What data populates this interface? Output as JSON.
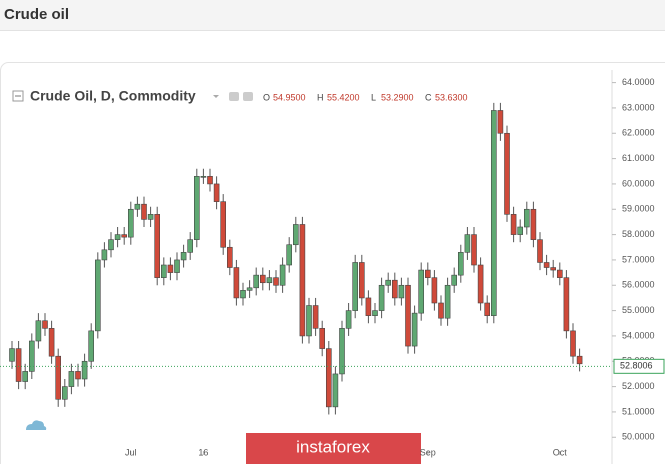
{
  "header": {
    "title": "Crude oil"
  },
  "chart_data": {
    "type": "candlestick",
    "title": "Crude Oil, D, Commodity",
    "legend_ohlc": [
      {
        "label": "O",
        "value": "54.9500"
      },
      {
        "label": "H",
        "value": "55.4200"
      },
      {
        "label": "L",
        "value": "53.2900"
      },
      {
        "label": "C",
        "value": "53.6300"
      }
    ],
    "watermark": "instaforex",
    "categories": [
      null,
      null,
      null,
      null,
      null,
      null,
      null,
      null,
      null,
      null,
      null,
      null,
      null,
      null,
      null,
      null,
      null,
      null,
      "Jul",
      null,
      null,
      null,
      null,
      null,
      null,
      null,
      null,
      null,
      null,
      "16",
      null,
      null,
      null,
      null,
      null,
      null,
      null,
      null,
      null,
      null,
      null,
      null,
      null,
      null,
      null,
      null,
      null,
      null,
      null,
      null,
      null,
      null,
      null,
      null,
      null,
      null,
      null,
      null,
      null,
      null,
      null,
      null,
      null,
      "Sep",
      null,
      null,
      null,
      null,
      null,
      null,
      null,
      null,
      null,
      null,
      null,
      null,
      null,
      null,
      null,
      null,
      null,
      null,
      null,
      "Oct",
      null,
      null,
      null
    ],
    "series": [
      {
        "up_color": "#5fa872",
        "down_color": "#cf4a3a",
        "open": [
          53.0,
          53.5,
          52.2,
          52.6,
          53.8,
          54.6,
          54.3,
          53.2,
          51.5,
          52.0,
          52.6,
          52.3,
          53.0,
          54.2,
          57.0,
          57.4,
          57.8,
          58.0,
          57.9,
          59.0,
          59.2,
          58.6,
          58.8,
          56.3,
          56.8,
          56.5,
          57.0,
          57.3,
          57.8,
          60.3,
          60.3,
          60.0,
          59.3,
          57.5,
          56.7,
          55.5,
          55.8,
          55.9,
          56.4,
          56.1,
          56.3,
          56.0,
          56.8,
          57.6,
          58.4,
          54.0,
          55.2,
          54.3,
          53.5,
          51.2,
          52.5,
          54.3,
          55.0,
          56.9,
          55.5,
          54.8,
          55.0,
          56.0,
          56.2,
          55.5,
          56.0,
          53.6,
          54.9,
          56.6,
          56.3,
          55.3,
          54.7,
          56.0,
          56.4,
          57.3,
          58.0,
          56.8,
          55.3,
          54.8,
          62.9,
          62.0,
          58.8,
          58.0,
          58.3,
          59.0,
          57.8,
          56.9,
          56.7,
          56.6,
          56.3,
          54.2,
          53.2
        ],
        "high": [
          53.8,
          53.8,
          52.9,
          54.1,
          54.9,
          54.9,
          54.6,
          53.5,
          52.3,
          52.9,
          52.9,
          53.3,
          54.5,
          57.3,
          57.7,
          58.1,
          58.3,
          58.3,
          59.3,
          59.5,
          59.5,
          59.1,
          59.1,
          57.1,
          57.1,
          57.3,
          57.6,
          58.1,
          60.6,
          60.6,
          60.6,
          60.3,
          59.6,
          57.8,
          57.0,
          56.1,
          56.2,
          56.7,
          56.7,
          56.6,
          56.6,
          57.1,
          57.9,
          58.7,
          58.7,
          55.5,
          55.5,
          54.6,
          53.8,
          52.8,
          54.6,
          55.3,
          57.2,
          57.2,
          55.8,
          55.3,
          56.3,
          56.5,
          56.5,
          56.3,
          56.3,
          55.2,
          56.9,
          56.9,
          56.6,
          55.6,
          56.3,
          56.7,
          57.6,
          58.3,
          58.3,
          57.1,
          55.6,
          63.2,
          63.2,
          62.3,
          59.1,
          58.6,
          59.3,
          59.3,
          58.1,
          57.2,
          57.0,
          56.9,
          56.6,
          54.5,
          53.5
        ],
        "low": [
          52.7,
          51.9,
          51.9,
          52.3,
          53.5,
          54.0,
          52.9,
          51.2,
          51.2,
          51.7,
          52.0,
          52.0,
          52.7,
          53.9,
          56.7,
          57.1,
          57.5,
          57.6,
          57.6,
          58.7,
          58.3,
          58.3,
          56.0,
          56.0,
          56.2,
          56.2,
          56.7,
          57.0,
          57.5,
          60.0,
          59.7,
          59.0,
          57.2,
          56.4,
          55.2,
          55.2,
          55.5,
          55.6,
          55.8,
          55.8,
          55.7,
          55.7,
          56.5,
          57.3,
          53.7,
          53.7,
          54.0,
          53.2,
          50.9,
          50.9,
          52.2,
          54.0,
          54.7,
          55.2,
          54.5,
          54.5,
          54.7,
          55.7,
          55.2,
          55.2,
          53.3,
          53.3,
          54.6,
          56.0,
          55.0,
          54.4,
          54.4,
          55.7,
          56.1,
          57.0,
          56.5,
          55.0,
          54.5,
          54.5,
          61.7,
          58.5,
          57.7,
          57.7,
          58.0,
          57.5,
          56.6,
          56.4,
          56.3,
          56.0,
          53.9,
          52.9,
          52.6
        ],
        "close": [
          53.5,
          52.2,
          52.6,
          53.8,
          54.6,
          54.3,
          53.2,
          51.5,
          52.0,
          52.6,
          52.3,
          53.0,
          54.2,
          57.0,
          57.4,
          57.8,
          58.0,
          57.9,
          59.0,
          59.2,
          58.6,
          58.8,
          56.3,
          56.8,
          56.5,
          57.0,
          57.3,
          57.8,
          60.3,
          60.3,
          60.0,
          59.3,
          57.5,
          56.7,
          55.5,
          55.8,
          55.9,
          56.4,
          56.1,
          56.3,
          56.0,
          56.8,
          57.6,
          58.4,
          54.0,
          55.2,
          54.3,
          53.5,
          51.2,
          52.5,
          54.3,
          55.0,
          56.9,
          55.5,
          54.8,
          55.0,
          56.0,
          56.2,
          55.5,
          56.0,
          53.6,
          54.9,
          56.6,
          56.3,
          55.3,
          54.7,
          56.0,
          56.4,
          57.3,
          58.0,
          56.8,
          55.3,
          54.8,
          62.9,
          62.0,
          58.8,
          58.0,
          58.3,
          59.0,
          57.8,
          56.9,
          56.7,
          56.6,
          56.3,
          54.2,
          53.2,
          52.9
        ]
      }
    ],
    "current_price": 52.8006,
    "current_price_color": "#3aa35a",
    "ylim": [
      49.3,
      64.3
    ],
    "yticks": [
      {
        "value": 50,
        "label": "50.0000"
      },
      {
        "value": 51,
        "label": "51.0000"
      },
      {
        "value": 52,
        "label": "52.0000"
      },
      {
        "value": 53,
        "label": "53.0000"
      },
      {
        "value": 54,
        "label": "54.0000"
      },
      {
        "value": 55,
        "label": "55.0000"
      },
      {
        "value": 56,
        "label": "56.0000"
      },
      {
        "value": 57,
        "label": "57.0000"
      },
      {
        "value": 58,
        "label": "58.0000"
      },
      {
        "value": 59,
        "label": "59.0000"
      },
      {
        "value": 60,
        "label": "60.0000"
      },
      {
        "value": 61,
        "label": "61.0000"
      },
      {
        "value": 62,
        "label": "62.0000"
      },
      {
        "value": 63,
        "label": "63.0000"
      },
      {
        "value": 64,
        "label": "64.0000"
      }
    ],
    "grid": false
  }
}
